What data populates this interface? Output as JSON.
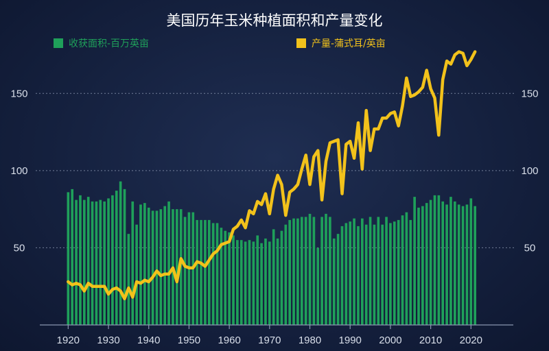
{
  "chart_data": {
    "type": "bar+line",
    "title": "美国历年玉米种植面积和产量变化",
    "legend_placement": "top",
    "grid": true,
    "colors": {
      "area": "#1fa05a",
      "yield": "#f2c21b"
    },
    "series": [
      {
        "name": "收获面积-百万英亩",
        "type": "bar",
        "x": [
          1920,
          1921,
          1922,
          1923,
          1924,
          1925,
          1926,
          1927,
          1928,
          1929,
          1930,
          1931,
          1932,
          1933,
          1934,
          1935,
          1936,
          1937,
          1938,
          1939,
          1940,
          1941,
          1942,
          1943,
          1944,
          1945,
          1946,
          1947,
          1948,
          1949,
          1950,
          1951,
          1952,
          1953,
          1954,
          1955,
          1956,
          1957,
          1958,
          1959,
          1960,
          1961,
          1962,
          1963,
          1964,
          1965,
          1966,
          1967,
          1968,
          1969,
          1970,
          1971,
          1972,
          1973,
          1974,
          1975,
          1976,
          1977,
          1978,
          1979,
          1980,
          1981,
          1982,
          1983,
          1984,
          1985,
          1986,
          1987,
          1988,
          1989,
          1990,
          1991,
          1992,
          1993,
          1994,
          1995,
          1996,
          1997,
          1998,
          1999,
          2000,
          2001,
          2002,
          2003,
          2004,
          2005,
          2006,
          2007,
          2008,
          2009,
          2010,
          2011,
          2012,
          2013,
          2014,
          2015,
          2016,
          2017,
          2018,
          2019,
          2020,
          2021
        ],
        "values": [
          86,
          88,
          81,
          84,
          81,
          83,
          80,
          80,
          81,
          80,
          82,
          84,
          87,
          93,
          88,
          59,
          80,
          65,
          78,
          79,
          76,
          74,
          74,
          75,
          77,
          80,
          75,
          75,
          75,
          70,
          73,
          73,
          68,
          68,
          68,
          68,
          66,
          66,
          63,
          61,
          60,
          58,
          55,
          55,
          54,
          55,
          54,
          58,
          53,
          56,
          54,
          62,
          56,
          61,
          65,
          68,
          69,
          69,
          70,
          70,
          72,
          70,
          50,
          70,
          72,
          70,
          56,
          59,
          64,
          66,
          67,
          69,
          64,
          69,
          65,
          70,
          65,
          70,
          65,
          70,
          66,
          67,
          68,
          71,
          73,
          68,
          83,
          76,
          77,
          79,
          81,
          84,
          84,
          80,
          78,
          83,
          80,
          78,
          77,
          78,
          82,
          77
        ]
      },
      {
        "name": "产量-蒲式耳/英亩",
        "type": "line",
        "x": [
          1920,
          1921,
          1922,
          1923,
          1924,
          1925,
          1926,
          1927,
          1928,
          1929,
          1930,
          1931,
          1932,
          1933,
          1934,
          1935,
          1936,
          1937,
          1938,
          1939,
          1940,
          1941,
          1942,
          1943,
          1944,
          1945,
          1946,
          1947,
          1948,
          1949,
          1950,
          1951,
          1952,
          1953,
          1954,
          1955,
          1956,
          1957,
          1958,
          1959,
          1960,
          1961,
          1962,
          1963,
          1964,
          1965,
          1966,
          1967,
          1968,
          1969,
          1970,
          1971,
          1972,
          1973,
          1974,
          1975,
          1976,
          1977,
          1978,
          1979,
          1980,
          1981,
          1982,
          1983,
          1984,
          1985,
          1986,
          1987,
          1988,
          1989,
          1990,
          1991,
          1992,
          1993,
          1994,
          1995,
          1996,
          1997,
          1998,
          1999,
          2000,
          2001,
          2002,
          2003,
          2004,
          2005,
          2006,
          2007,
          2008,
          2009,
          2010,
          2011,
          2012,
          2013,
          2014,
          2015,
          2016,
          2017,
          2018,
          2019,
          2020,
          2021
        ],
        "values": [
          28,
          26,
          27,
          26,
          22,
          27,
          25,
          25,
          25,
          25,
          20,
          23,
          24,
          22,
          17,
          24,
          18,
          28,
          27,
          29,
          28,
          31,
          35,
          32,
          33,
          33,
          37,
          28,
          43,
          38,
          37,
          37,
          41,
          40,
          38,
          42,
          46,
          48,
          52,
          53,
          54,
          62,
          64,
          68,
          63,
          74,
          72,
          80,
          78,
          85,
          72,
          88,
          97,
          91,
          71,
          86,
          88,
          91,
          101,
          110,
          91,
          109,
          113,
          81,
          106,
          118,
          119,
          120,
          85,
          117,
          119,
          108,
          131,
          101,
          139,
          113,
          127,
          127,
          134,
          134,
          137,
          138,
          129,
          142,
          160,
          148,
          149,
          151,
          154,
          165,
          153,
          147,
          123,
          159,
          171,
          169,
          175,
          177,
          176,
          168,
          172,
          177
        ]
      }
    ],
    "xlim": [
      1915,
      2030
    ],
    "xticks": [
      "1920",
      "1930",
      "1940",
      "1950",
      "1960",
      "1970",
      "1980",
      "1990",
      "2000",
      "2010",
      "2020"
    ],
    "ylim": [
      0,
      175
    ],
    "yticks": [
      "50",
      "100",
      "150"
    ]
  }
}
